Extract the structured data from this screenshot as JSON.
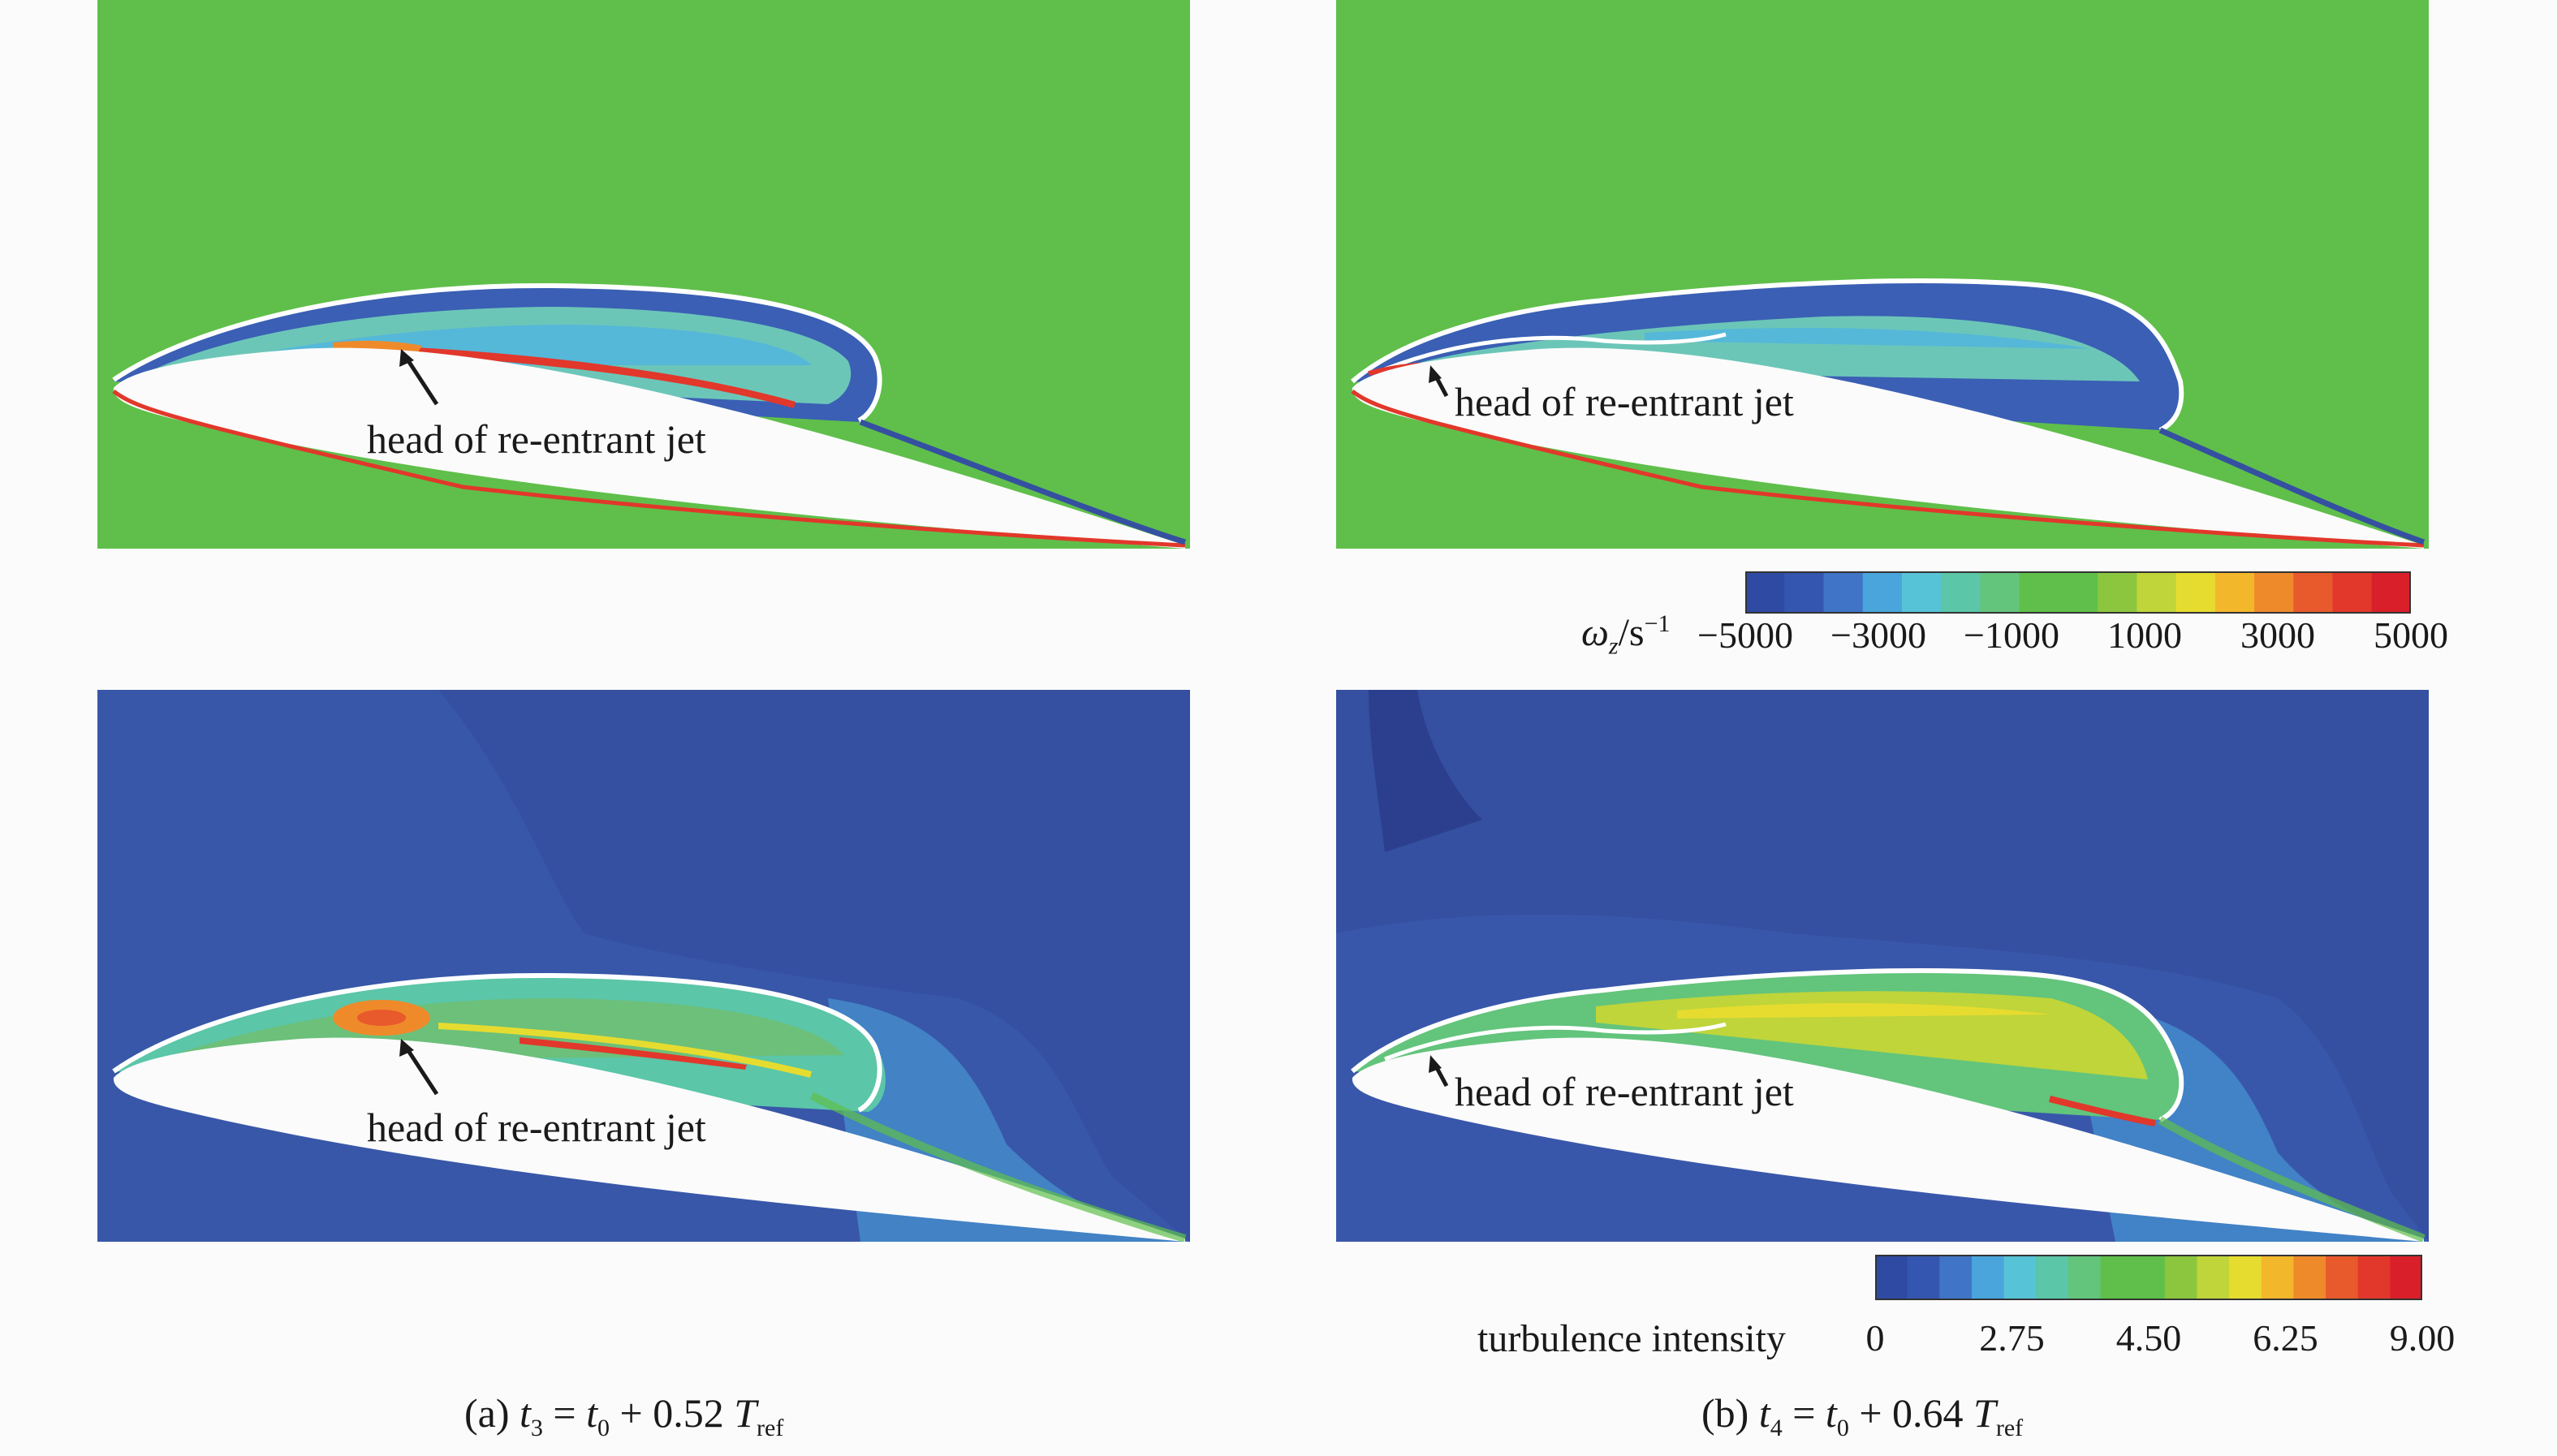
{
  "annotations": {
    "a_top": "head of re-entrant jet",
    "b_top": "head of re-entrant jet",
    "a_bottom": "head of re-entrant jet",
    "b_bottom": "head of re-entrant jet"
  },
  "vorticity_colorbar": {
    "title_symbol": "ω",
    "title_sub": "z",
    "title_unit": "/s",
    "title_exp": "−1",
    "ticks": [
      "−5000",
      "−3000",
      "−1000",
      "1000",
      "3000",
      "5000"
    ],
    "colors": [
      "#2f4aa3",
      "#3556b0",
      "#3f74c6",
      "#4aa5dc",
      "#56c3d6",
      "#5bc6a8",
      "#63c47c",
      "#5fbf4a",
      "#5fbf4a",
      "#8cc63e",
      "#bfd53a",
      "#e6dc2f",
      "#f3b72b",
      "#ef8a2b",
      "#e8592c",
      "#e2372b",
      "#d91f2a"
    ]
  },
  "turbulence_colorbar": {
    "title": "turbulence intensity",
    "ticks": [
      "0",
      "2.75",
      "4.50",
      "6.25",
      "9.00"
    ],
    "colors": [
      "#2f4aa3",
      "#3556b0",
      "#3f74c6",
      "#4aa5dc",
      "#56c3d6",
      "#5bc6a8",
      "#63c47c",
      "#5fbf4a",
      "#5fbf4a",
      "#8cc63e",
      "#bfd53a",
      "#e6dc2f",
      "#f3b72b",
      "#ef8a2b",
      "#e8592c",
      "#e2372b",
      "#d91f2a"
    ]
  },
  "captions": {
    "a": {
      "prefix": "(a) ",
      "lhs": "t",
      "lhs_sub": "3",
      "eq": " = ",
      "rhs": "t",
      "rhs_sub": "0",
      "plus": " + 0.52 ",
      "T": "T",
      "T_sub": "ref"
    },
    "b": {
      "prefix": "(b) ",
      "lhs": "t",
      "lhs_sub": "4",
      "eq": " = ",
      "rhs": "t",
      "rhs_sub": "0",
      "plus": " + 0.64 ",
      "T": "T",
      "T_sub": "ref"
    }
  },
  "colors": {
    "vorticity_bg": "#5fbf4a",
    "turbulence_bg": "#3550a0",
    "foil": "#fbfbfb",
    "cavity_outline": "#ffffff"
  }
}
